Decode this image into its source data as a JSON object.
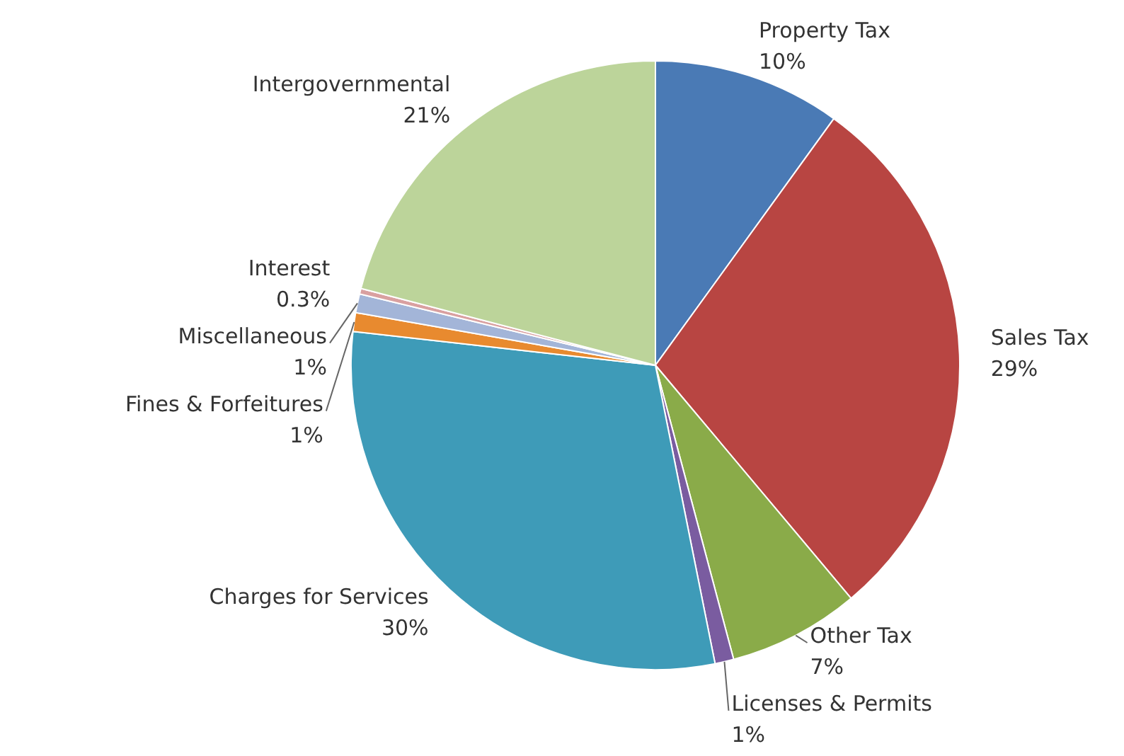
{
  "chart_data": {
    "type": "pie",
    "categories": [
      "Property Tax",
      "Sales Tax",
      "Other Tax",
      "Licenses & Permits",
      "Charges for Services",
      "Fines & Forfeitures",
      "Miscellaneous",
      "Interest",
      "Intergovernmental"
    ],
    "values": [
      10,
      29,
      7,
      1,
      30,
      1,
      1,
      0.3,
      21
    ],
    "value_labels": [
      "10%",
      "29%",
      "7%",
      "1%",
      "30%",
      "1%",
      "1%",
      "0.3%",
      "21%"
    ],
    "colors": [
      "#4a7ab5",
      "#b84542",
      "#8aab49",
      "#7a5ca0",
      "#3e9bb8",
      "#e88a2f",
      "#a3b5d8",
      "#d9a0a0",
      "#bcd49a"
    ]
  }
}
